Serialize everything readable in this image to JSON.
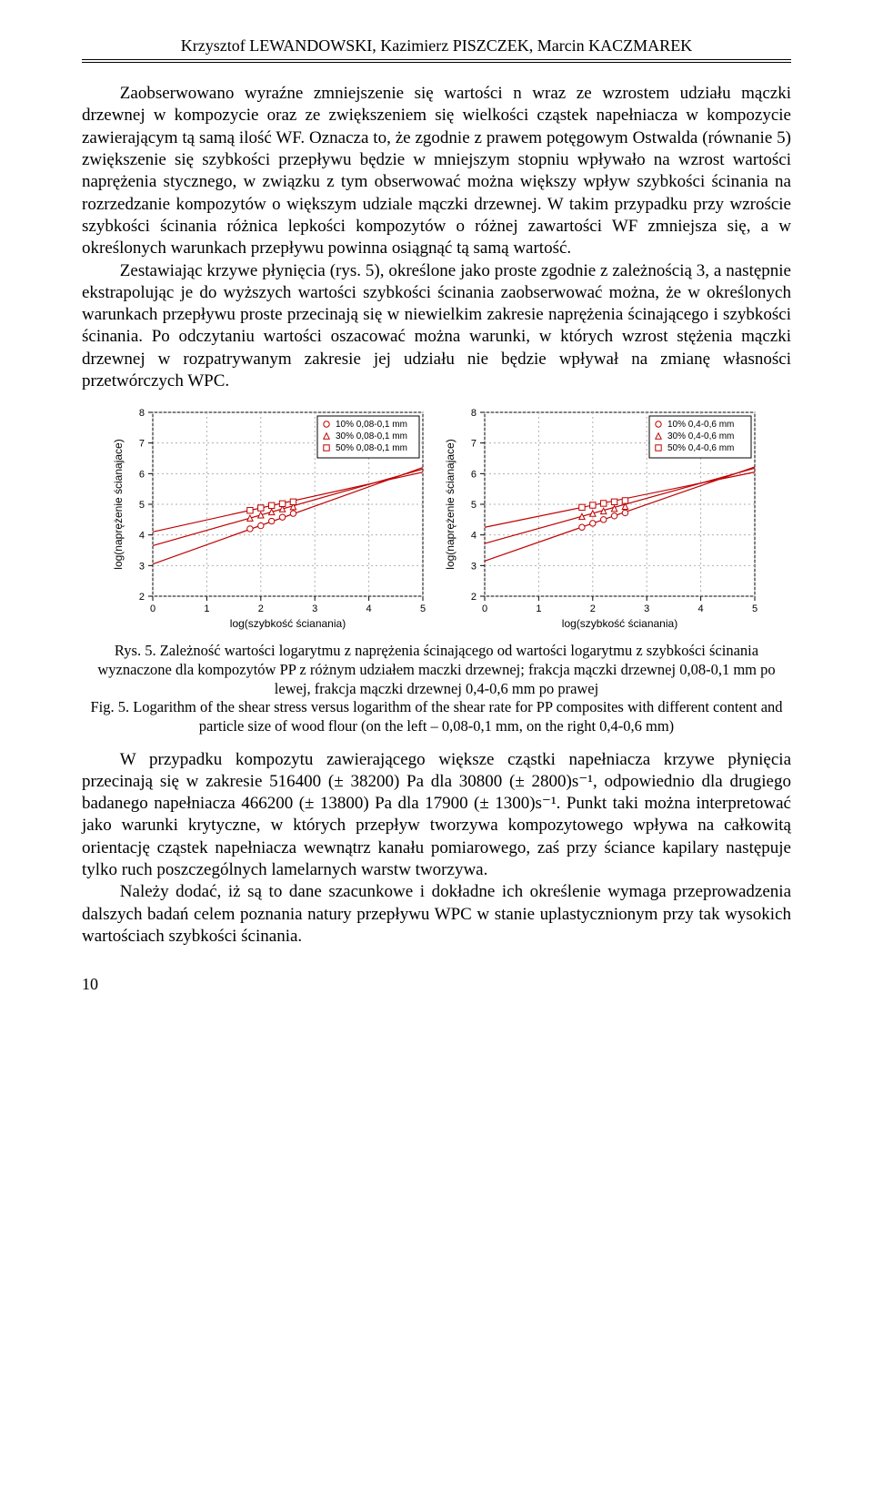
{
  "header": {
    "authors": "Krzysztof LEWANDOWSKI, Kazimierz PISZCZEK, Marcin KACZMAREK"
  },
  "body": {
    "para1": "Zaobserwowano wyraźne zmniejszenie się wartości n wraz ze wzrostem udziału mączki drzewnej w kompozycie oraz ze zwiększeniem się wielkości cząstek napełniacza w kompozycie zawierającym tą samą ilość WF. Oznacza to, że zgodnie z prawem potęgowym Ostwalda (równanie 5) zwiększenie się szybkości przepływu będzie w mniejszym stopniu wpływało na wzrost wartości naprężenia stycznego, w związku z tym obserwować można większy wpływ szybkości ścinania na rozrzedzanie kompozytów o większym udziale mączki drzewnej. W takim przypadku przy wzroście szybkości ścinania różnica lepkości kompozytów o różnej zawartości WF zmniejsza się, a w określonych warunkach przepływu powinna osiągnąć tą samą wartość.",
    "para2": "Zestawiając krzywe płynięcia (rys. 5), określone jako proste zgodnie z zależnością 3, a następnie ekstrapolując je do wyższych wartości szybkości ścinania zaobserwować można, że w określonych warunkach przepływu proste przecinają się w niewielkim zakresie naprężenia ścinającego i szybkości ścinania. Po odczytaniu wartości oszacować można warunki, w których wzrost stężenia mączki drzewnej w rozpatrywanym zakresie jej udziału nie będzie wpływał na zmianę własności przetwórczych WPC.",
    "para3": "W przypadku kompozytu zawierającego większe cząstki napełniacza krzywe płynięcia przecinają się w zakresie 516400 (± 38200) Pa dla 30800 (± 2800)s⁻¹, odpowiednio dla drugiego badanego napełniacza 466200 (± 13800) Pa dla 17900 (± 1300)s⁻¹. Punkt taki można interpretować jako warunki krytyczne, w których przepływ tworzywa kompozytowego wpływa na całkowitą orientację cząstek napełniacza wewnątrz kanału pomiarowego, zaś przy ściance kapilary następuje tylko ruch poszczególnych lamelarnych warstw tworzywa.",
    "para4": "Należy dodać, iż są to dane szacunkowe i dokładne ich określenie wymaga przeprowadzenia dalszych badań celem poznania natury przepływu WPC w stanie uplastycznionym przy tak wysokich wartościach szybkości ścinania."
  },
  "figure5": {
    "caption_pl": "Rys. 5. Zależność wartości logarytmu z naprężenia ścinającego od wartości logarytmu z szybkości ścinania wyznaczone dla kompozytów PP z różnym udziałem maczki drzewnej; frakcja mączki drzewnej 0,08-0,1 mm po lewej, frakcja mączki drzewnej 0,4-0,6 mm po prawej",
    "caption_en": "Fig. 5. Logarithm of the shear stress versus logarithm of the shear rate for PP composites with different content and particle size of wood flour (on the left – 0,08-0,1 mm, on the right 0,4-0,6 mm)",
    "common": {
      "xlim": [
        0,
        5
      ],
      "ylim": [
        2,
        8
      ],
      "xticks": [
        0,
        1,
        2,
        3,
        4,
        5
      ],
      "yticks": [
        2,
        3,
        4,
        5,
        6,
        7,
        8
      ],
      "xlabel": "log(szybkość ścianania)",
      "ylabel": "log(naprężenie ścianajace)",
      "line_colors": [
        "#c00000",
        "#c00000",
        "#c00000"
      ],
      "marker_stroke": "#c00000",
      "grid_color": "#b0b0b0",
      "background": "#ffffff",
      "axis_fontsize": 12,
      "tick_fontsize": 11,
      "legend_fontsize": 10
    },
    "left": {
      "legend": [
        "10% 0,08-0,1 mm",
        "30% 0,08-0,1 mm",
        "50% 0,08-0,1 mm"
      ],
      "markers": [
        "circle",
        "triangle",
        "square"
      ],
      "series": [
        {
          "pts": [
            [
              1.8,
              4.2
            ],
            [
              2.0,
              4.3
            ],
            [
              2.2,
              4.45
            ],
            [
              2.4,
              4.58
            ],
            [
              2.6,
              4.7
            ]
          ],
          "line_start": [
            0,
            3.05
          ],
          "line_end": [
            5,
            6.2
          ]
        },
        {
          "pts": [
            [
              1.8,
              4.55
            ],
            [
              2.0,
              4.65
            ],
            [
              2.2,
              4.75
            ],
            [
              2.4,
              4.85
            ],
            [
              2.6,
              4.92
            ]
          ],
          "line_start": [
            0,
            3.65
          ],
          "line_end": [
            5,
            6.15
          ]
        },
        {
          "pts": [
            [
              1.8,
              4.8
            ],
            [
              2.0,
              4.88
            ],
            [
              2.2,
              4.96
            ],
            [
              2.4,
              5.02
            ],
            [
              2.6,
              5.08
            ]
          ],
          "line_start": [
            0,
            4.1
          ],
          "line_end": [
            5,
            6.05
          ]
        }
      ]
    },
    "right": {
      "legend": [
        "10% 0,4-0,6 mm",
        "30% 0,4-0,6 mm",
        "50% 0,4-0,6 mm"
      ],
      "markers": [
        "circle-filled",
        "triangle-filled",
        "square-filled"
      ],
      "series": [
        {
          "pts": [
            [
              1.8,
              4.25
            ],
            [
              2.0,
              4.38
            ],
            [
              2.2,
              4.5
            ],
            [
              2.4,
              4.62
            ],
            [
              2.6,
              4.72
            ]
          ],
          "line_start": [
            0,
            3.15
          ],
          "line_end": [
            5,
            6.22
          ]
        },
        {
          "pts": [
            [
              1.8,
              4.6
            ],
            [
              2.0,
              4.7
            ],
            [
              2.2,
              4.78
            ],
            [
              2.4,
              4.86
            ],
            [
              2.6,
              4.93
            ]
          ],
          "line_start": [
            0,
            3.72
          ],
          "line_end": [
            5,
            6.18
          ]
        },
        {
          "pts": [
            [
              1.8,
              4.9
            ],
            [
              2.0,
              4.97
            ],
            [
              2.2,
              5.03
            ],
            [
              2.4,
              5.08
            ],
            [
              2.6,
              5.12
            ]
          ],
          "line_start": [
            0,
            4.25
          ],
          "line_end": [
            5,
            6.05
          ]
        }
      ]
    }
  },
  "page_number": "10"
}
